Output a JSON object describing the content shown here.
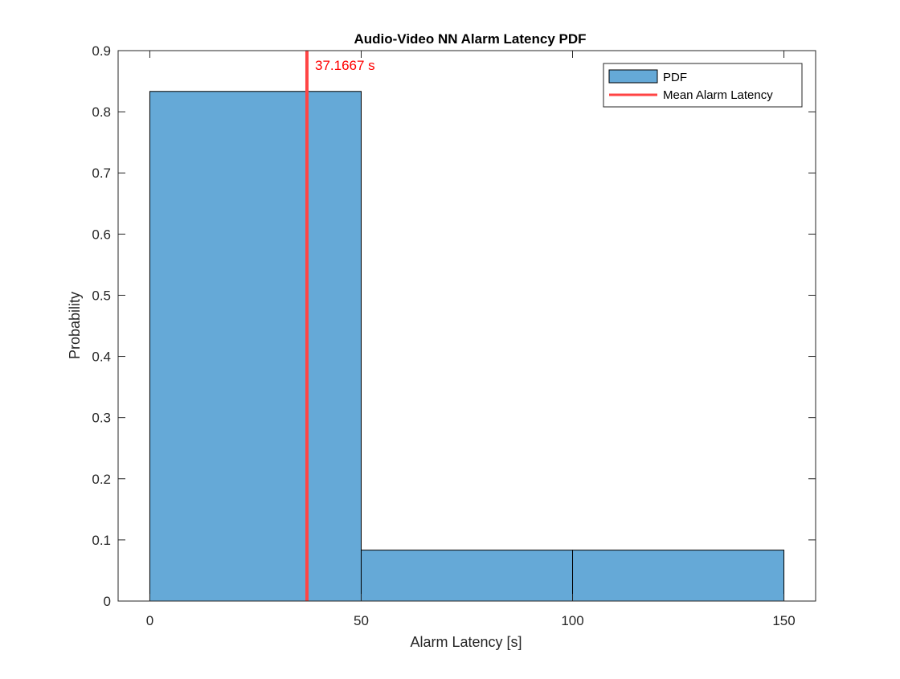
{
  "chart_data": {
    "type": "bar",
    "title": "Audio-Video NN Alarm Latency PDF",
    "xlabel": "Alarm Latency [s]",
    "ylabel": "Probability",
    "xlim": [
      -7.5,
      157.5
    ],
    "ylim": [
      0,
      0.9
    ],
    "xticks": [
      0,
      50,
      100,
      150
    ],
    "xtick_labels": [
      "0",
      "50",
      "100",
      "150"
    ],
    "yticks": [
      0,
      0.1,
      0.2,
      0.3,
      0.4,
      0.5,
      0.6,
      0.7,
      0.8,
      0.9
    ],
    "ytick_labels": [
      "0",
      "0.1",
      "0.2",
      "0.3",
      "0.4",
      "0.5",
      "0.6",
      "0.7",
      "0.8",
      "0.9"
    ],
    "bin_edges": [
      0,
      50,
      100,
      150
    ],
    "values": [
      0.8333,
      0.0833,
      0.0833
    ],
    "series": [
      {
        "name": "PDF",
        "color": "#65a9d7",
        "values": [
          0.8333,
          0.0833,
          0.0833
        ]
      },
      {
        "name": "Mean Alarm Latency",
        "color": "#ff4444",
        "x": 37.1667
      }
    ],
    "mean_line": {
      "x": 37.1667,
      "label": "37.1667 s",
      "color": "#ff4444"
    },
    "grid": false,
    "legend": {
      "position": "top-right"
    }
  }
}
